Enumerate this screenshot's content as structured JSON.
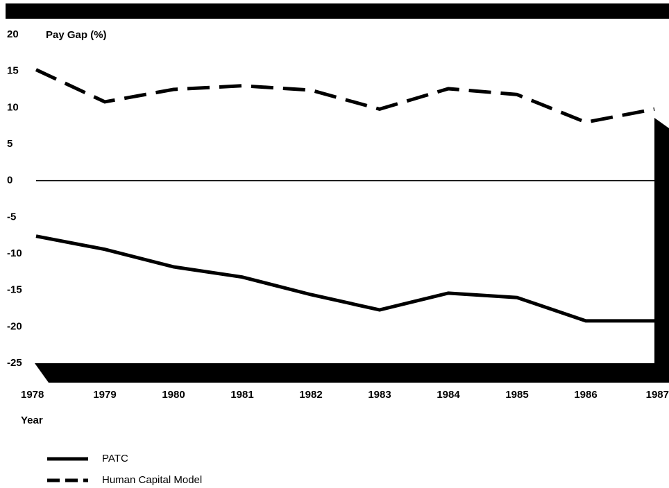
{
  "chart_data": {
    "type": "line",
    "y_label": "Pay Gap (%)",
    "x_label": "Year",
    "categories": [
      "1978",
      "1979",
      "1980",
      "1981",
      "1982",
      "1983",
      "1984",
      "1985",
      "1986",
      "1987"
    ],
    "series": [
      {
        "name": "PATC",
        "color": "#000000",
        "style": "solid",
        "values": [
          -7.6,
          -9.4,
          -11.8,
          -13.2,
          -15.6,
          -17.7,
          -15.4,
          -16.0,
          -19.2,
          -19.2
        ]
      },
      {
        "name": "Human Capital Model",
        "color": "#000000",
        "style": "dashed",
        "values": [
          15.2,
          10.8,
          12.5,
          13.0,
          12.4,
          9.8,
          12.6,
          11.8,
          8.0,
          9.8
        ]
      }
    ],
    "ylim": [
      -25,
      20
    ],
    "yticks": [
      20,
      15,
      10,
      5,
      0,
      -5,
      -10,
      -15,
      -20,
      -25
    ]
  }
}
